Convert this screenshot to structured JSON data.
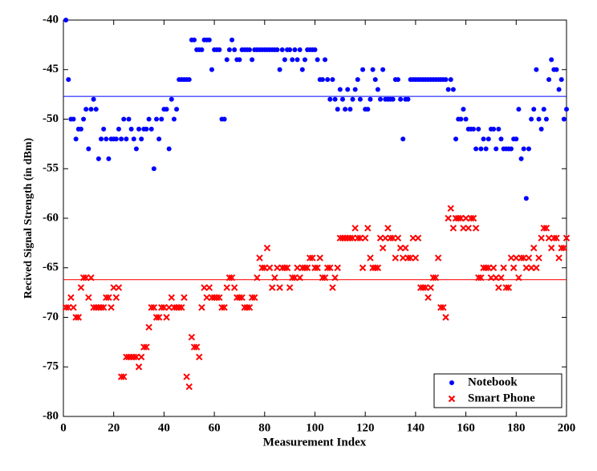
{
  "chart_data": {
    "type": "scatter",
    "xlabel": "Measurement Index",
    "ylabel": "Recived Signal Strength (in dBm)",
    "xlim": [
      0,
      200
    ],
    "ylim": [
      -80,
      -40
    ],
    "xticks": [
      0,
      20,
      40,
      60,
      80,
      100,
      120,
      140,
      160,
      180,
      200
    ],
    "yticks": [
      -80,
      -75,
      -70,
      -65,
      -60,
      -55,
      -50,
      -45,
      -40
    ],
    "legend": "lower right",
    "x": [
      1,
      2,
      3,
      4,
      5,
      6,
      7,
      8,
      9,
      10,
      11,
      12,
      13,
      14,
      15,
      16,
      17,
      18,
      19,
      20,
      21,
      22,
      23,
      24,
      25,
      26,
      27,
      28,
      29,
      30,
      31,
      32,
      33,
      34,
      35,
      36,
      37,
      38,
      39,
      40,
      41,
      42,
      43,
      44,
      45,
      46,
      47,
      48,
      49,
      50,
      51,
      52,
      53,
      54,
      55,
      56,
      57,
      58,
      59,
      60,
      61,
      62,
      63,
      64,
      65,
      66,
      67,
      68,
      69,
      70,
      71,
      72,
      73,
      74,
      75,
      76,
      77,
      78,
      79,
      80,
      81,
      82,
      83,
      84,
      85,
      86,
      87,
      88,
      89,
      90,
      91,
      92,
      93,
      94,
      95,
      96,
      97,
      98,
      99,
      100,
      101,
      102,
      103,
      104,
      105,
      106,
      107,
      108,
      109,
      110,
      111,
      112,
      113,
      114,
      115,
      116,
      117,
      118,
      119,
      120,
      121,
      122,
      123,
      124,
      125,
      126,
      127,
      128,
      129,
      130,
      131,
      132,
      133,
      134,
      135,
      136,
      137,
      138,
      139,
      140,
      141,
      142,
      143,
      144,
      145,
      146,
      147,
      148,
      149,
      150,
      151,
      152,
      153,
      154,
      155,
      156,
      157,
      158,
      159,
      160,
      161,
      162,
      163,
      164,
      165,
      166,
      167,
      168,
      169,
      170,
      171,
      172,
      173,
      174,
      175,
      176,
      177,
      178,
      179,
      180,
      181,
      182,
      183,
      184,
      185,
      186,
      187,
      188,
      189,
      190,
      191,
      192,
      193,
      194,
      195,
      196,
      197,
      198,
      199,
      200
    ],
    "series": [
      {
        "name": "Notebook",
        "color": "#0000ff",
        "marker": "circle",
        "values": [
          -40,
          -46,
          -50,
          -50,
          -52,
          -51,
          -51,
          -50,
          -49,
          -53,
          -49,
          -48,
          -49,
          -54,
          -52,
          -51,
          -52,
          -54,
          -52,
          -52,
          -52,
          -51,
          -52,
          -50,
          -52,
          -50,
          -51,
          -52,
          -53,
          -51,
          -52,
          -51,
          -51,
          -50,
          -51,
          -55,
          -50,
          -52,
          -50,
          -49,
          -49,
          -53,
          -48,
          -50,
          -49,
          -46,
          -46,
          -46,
          -46,
          -46,
          -42,
          -42,
          -43,
          -43,
          -43,
          -42,
          -42,
          -42,
          -45,
          -43,
          -43,
          -43,
          -50,
          -50,
          -44,
          -43,
          -42,
          -43,
          -44,
          -44,
          -43,
          -43,
          -43,
          -43,
          -44,
          -43,
          -43,
          -43,
          -43,
          -43,
          -43,
          -43,
          -43,
          -43,
          -43,
          -45,
          -43,
          -44,
          -43,
          -43,
          -44,
          -43,
          -44,
          -43,
          -45,
          -44,
          -43,
          -43,
          -43,
          -43,
          -44,
          -46,
          -46,
          -44,
          -46,
          -48,
          -46,
          -48,
          -49,
          -47,
          -48,
          -49,
          -47,
          -49,
          -48,
          -47,
          -46,
          -48,
          -45,
          -49,
          -49,
          -48,
          -45,
          -46,
          -47,
          -48,
          -45,
          -48,
          -48,
          -48,
          -48,
          -46,
          -46,
          -48,
          -52,
          -48,
          -48,
          -46,
          -46,
          -46,
          -46,
          -46,
          -46,
          -46,
          -46,
          -46,
          -46,
          -46,
          -46,
          -46,
          -46,
          -46,
          -47,
          -46,
          -47,
          -52,
          -50,
          -50,
          -49,
          -50,
          -51,
          -51,
          -51,
          -53,
          -51,
          -53,
          -52,
          -53,
          -52,
          -51,
          -51,
          -53,
          -51,
          -52,
          -53,
          -53,
          -53,
          -53,
          -52,
          -52,
          -49,
          -54,
          -53,
          -58,
          -53,
          -50,
          -49,
          -45,
          -50,
          -51,
          -49,
          -50,
          -46,
          -44,
          -45,
          -45,
          -47,
          -46,
          -50,
          -49
        ]
      },
      {
        "name": "Smart Phone",
        "color": "#ff0000",
        "marker": "x",
        "values": [
          -69,
          -69,
          -68,
          -69,
          -70,
          -70,
          -67,
          -66,
          -66,
          -68,
          -66,
          -69,
          -69,
          -69,
          -69,
          -69,
          -68,
          -68,
          -69,
          -67,
          -68,
          -67,
          -76,
          -76,
          -74,
          -74,
          -74,
          -74,
          -74,
          -75,
          -74,
          -73,
          -73,
          -71,
          -69,
          -69,
          -70,
          -70,
          -69,
          -69,
          -70,
          -69,
          -68,
          -69,
          -69,
          -69,
          -69,
          -68,
          -76,
          -77,
          -72,
          -73,
          -73,
          -74,
          -69,
          -67,
          -68,
          -67,
          -68,
          -68,
          -68,
          -68,
          -69,
          -69,
          -67,
          -66,
          -66,
          -67,
          -68,
          -68,
          -68,
          -69,
          -69,
          -69,
          -68,
          -68,
          -66,
          -64,
          -65,
          -65,
          -63,
          -65,
          -67,
          -66,
          -65,
          -67,
          -65,
          -65,
          -65,
          -67,
          -66,
          -66,
          -65,
          -66,
          -65,
          -65,
          -65,
          -64,
          -64,
          -65,
          -65,
          -64,
          -66,
          -66,
          -65,
          -65,
          -67,
          -66,
          -65,
          -62,
          -62,
          -62,
          -62,
          -62,
          -62,
          -61,
          -62,
          -62,
          -65,
          -62,
          -61,
          -64,
          -65,
          -65,
          -65,
          -62,
          -63,
          -62,
          -61,
          -62,
          -62,
          -64,
          -62,
          -63,
          -64,
          -63,
          -64,
          -64,
          -62,
          -64,
          -62,
          -67,
          -67,
          -67,
          -68,
          -67,
          -66,
          -66,
          -64,
          -69,
          -69,
          -70,
          -60,
          -59,
          -61,
          -60,
          -60,
          -60,
          -61,
          -60,
          -61,
          -60,
          -60,
          -61,
          -66,
          -66,
          -65,
          -65,
          -65,
          -66,
          -65,
          -66,
          -67,
          -66,
          -65,
          -67,
          -67,
          -64,
          -65,
          -64,
          -66,
          -64,
          -64,
          -65,
          -64,
          -65,
          -63,
          -65,
          -64,
          -62,
          -61,
          -61,
          -62,
          -63,
          -62,
          -62,
          -64,
          -63,
          -63,
          -62
        ]
      }
    ],
    "reference_lines": [
      {
        "value": -47.7,
        "color": "#0000ff"
      },
      {
        "value": -66.2,
        "color": "#ff0000"
      }
    ]
  }
}
